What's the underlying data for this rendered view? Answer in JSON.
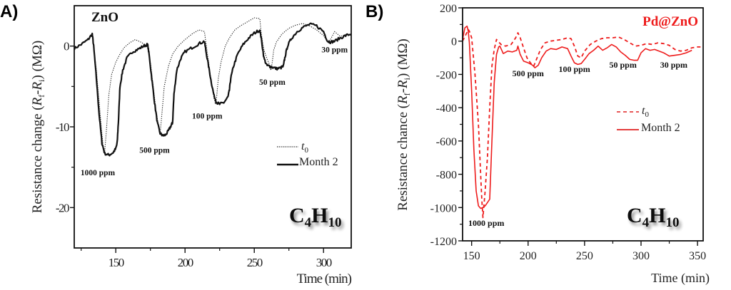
{
  "chart_data": [
    {
      "panel_label": "A)",
      "type": "line",
      "material_label": "ZnO",
      "gas_label": {
        "base": "C",
        "sub1": "4",
        "mid": "H",
        "sub2": "10"
      },
      "xlabel": "Time (min)",
      "ylabel": "Resistance change (R_f-R_i) (MΩ)",
      "ylabel_parts": {
        "pre": "Resistance change (",
        "r1": "R",
        "s1": "f",
        "dash": "-",
        "r2": "R",
        "s2": "i",
        "post": ") (MΩ)"
      },
      "xlim": [
        120,
        320
      ],
      "ylim": [
        -25,
        5
      ],
      "xticks": [
        150,
        200,
        250,
        300
      ],
      "xtick_labels": [
        "150",
        "200",
        "250",
        "300"
      ],
      "xminor": [
        125,
        175,
        225,
        275
      ],
      "yticks": [
        0,
        -10,
        -20
      ],
      "ytick_labels": [
        "0",
        "-10",
        "-20"
      ],
      "yminor": [
        -5,
        -15
      ],
      "color": "#111111",
      "legend": {
        "position": "center-right",
        "entries": [
          {
            "label": "t",
            "sub": "0",
            "style": "dotted"
          },
          {
            "label": "Month 2",
            "style": "solid"
          }
        ]
      },
      "annotations": [
        {
          "text": "1000 ppm",
          "x": 137,
          "y": -16
        },
        {
          "text": "500 ppm",
          "x": 178,
          "y": -13.2
        },
        {
          "text": "100 ppm",
          "x": 216,
          "y": -9
        },
        {
          "text": "50 ppm",
          "x": 263,
          "y": -4.8
        },
        {
          "text": "30 ppm",
          "x": 308,
          "y": -0.8
        }
      ],
      "series": [
        {
          "name": "t0",
          "style": "dotted",
          "x": [
            120,
            125,
            130,
            133,
            134,
            136,
            138,
            140,
            141,
            142,
            143,
            145,
            147,
            150,
            153,
            156,
            160,
            164,
            168,
            172,
            173,
            175,
            177,
            179,
            181,
            182,
            183,
            185,
            188,
            191,
            195,
            200,
            205,
            210,
            214,
            215,
            217,
            219,
            221,
            222,
            223,
            224,
            226,
            229,
            232,
            236,
            240,
            245,
            250,
            254,
            255,
            257,
            259,
            261,
            262,
            263,
            264,
            266,
            270,
            275,
            280,
            285,
            290,
            295,
            300,
            303,
            305,
            308,
            312,
            316,
            320
          ],
          "y": [
            -0.3,
            0.2,
            0.8,
            1.5,
            0,
            -3,
            -7,
            -11,
            -12.5,
            -13,
            -11,
            -6,
            -3.5,
            -2,
            -1,
            -0.2,
            0.4,
            0.8,
            0.5,
            0.1,
            0,
            -2,
            -5,
            -8,
            -10,
            -10.8,
            -9,
            -5,
            -2.5,
            -1,
            0,
            0.8,
            1.5,
            2,
            1.8,
            0.5,
            -2,
            -4.5,
            -6.5,
            -7.2,
            -6,
            -4,
            -2,
            0,
            1,
            2,
            2.5,
            3,
            3.5,
            3.4,
            1.5,
            -0.5,
            -1.5,
            -2.3,
            -3,
            -2,
            -0.5,
            0.5,
            1.5,
            2.2,
            2.6,
            2.8,
            2.5,
            2,
            1.3,
            0.6,
            0.8,
            1.8,
            1.2,
            1.4,
            1.5
          ]
        },
        {
          "name": "Month 2",
          "style": "solid",
          "x": [
            120,
            125,
            130,
            133,
            134,
            136,
            138,
            140,
            142,
            145,
            148,
            150,
            151,
            152,
            153,
            155,
            158,
            162,
            166,
            170,
            173,
            174,
            176,
            178,
            180,
            182,
            184,
            186,
            188,
            190,
            191,
            192,
            194,
            197,
            200,
            205,
            210,
            214,
            215,
            217,
            219,
            221,
            223,
            225,
            228,
            231,
            232,
            233,
            235,
            238,
            242,
            246,
            250,
            254,
            255,
            257,
            259,
            261,
            263,
            266,
            269,
            271,
            272,
            274,
            277,
            281,
            285,
            290,
            295,
            300,
            303,
            305,
            308,
            312,
            316,
            320
          ],
          "y": [
            -0.3,
            0.2,
            0.8,
            1.5,
            0,
            -4,
            -8.5,
            -12,
            -13.3,
            -13.5,
            -13.2,
            -12.7,
            -12,
            -9,
            -5,
            -3,
            -1.5,
            -0.7,
            -0.4,
            0,
            0.2,
            -1,
            -4,
            -7,
            -9.5,
            -10.8,
            -11.1,
            -11,
            -10.5,
            -9.8,
            -9.5,
            -6,
            -3,
            -1.5,
            -0.7,
            -0.2,
            0.3,
            0.6,
            -0.5,
            -2.5,
            -4.5,
            -6.2,
            -7,
            -7.2,
            -7,
            -6.3,
            -5.5,
            -4,
            -2.5,
            -1,
            0.2,
            1,
            1.6,
            2,
            1,
            -1.5,
            -2.4,
            -2.5,
            -2.6,
            -2.8,
            -2.7,
            -2.5,
            -1.5,
            0,
            1,
            1.8,
            2.3,
            2.7,
            2.5,
            1.8,
            0.6,
            0.5,
            0.6,
            1,
            1.3,
            1.5
          ]
        }
      ]
    },
    {
      "panel_label": "B)",
      "type": "line",
      "material_label": "Pd@ZnO",
      "gas_label": {
        "base": "C",
        "sub1": "4",
        "mid": "H",
        "sub2": "10"
      },
      "xlabel": "Time (min)",
      "ylabel": "Resistance chance (R_f-R_i) (MΩ)",
      "ylabel_parts": {
        "pre": "Resistance chance (",
        "r1": "R",
        "s1": "f",
        "dash": "-",
        "r2": "R",
        "s2": "i",
        "post": ") (MΩ)"
      },
      "xlim": [
        142,
        355
      ],
      "ylim": [
        -1200,
        200
      ],
      "xticks": [
        150,
        200,
        250,
        300,
        350
      ],
      "xtick_labels": [
        "150",
        "200",
        "250",
        "300",
        "350"
      ],
      "xminor": [
        175,
        225,
        275,
        325
      ],
      "yticks": [
        200,
        0,
        -200,
        -400,
        -600,
        -800,
        -1000,
        -1200
      ],
      "ytick_labels": [
        "200",
        "0",
        "-200",
        "-400",
        "-600",
        "-800",
        "-1000",
        "-1200"
      ],
      "yminor": [
        100,
        -100,
        -300,
        -500,
        -700,
        -900,
        -1100
      ],
      "color": "#ee1c1c",
      "legend": {
        "position": "center-right",
        "entries": [
          {
            "label": "t",
            "sub": "0",
            "style": "dashed"
          },
          {
            "label": "Month 2",
            "style": "solid"
          }
        ]
      },
      "annotations": [
        {
          "text": "1000 ppm",
          "x": 163,
          "y": -1110
        },
        {
          "text": "500 ppm",
          "x": 200,
          "y": -210
        },
        {
          "text": "100 ppm",
          "x": 241,
          "y": -185
        },
        {
          "text": "50 ppm",
          "x": 284,
          "y": -160
        },
        {
          "text": "30 ppm",
          "x": 329,
          "y": -160
        }
      ],
      "series": [
        {
          "name": "t0",
          "style": "dashed",
          "x": [
            142,
            145,
            147,
            148,
            150,
            153,
            156,
            158,
            159,
            160,
            162,
            164,
            166,
            168,
            170,
            172,
            176,
            180,
            185,
            189,
            191,
            193,
            196,
            199,
            202,
            205,
            208,
            211,
            215,
            220,
            225,
            230,
            235,
            238,
            241,
            244,
            247,
            250,
            255,
            260,
            265,
            270,
            275,
            280,
            285,
            290,
            295,
            300,
            305,
            310,
            315,
            320,
            325,
            330,
            335,
            340,
            345,
            350,
            355
          ],
          "y": [
            0,
            40,
            70,
            60,
            20,
            -200,
            -500,
            -800,
            -950,
            -1060,
            -900,
            -700,
            -400,
            -150,
            -50,
            10,
            -20,
            -30,
            -20,
            20,
            50,
            20,
            -40,
            -100,
            -130,
            -150,
            -100,
            -50,
            -10,
            0,
            5,
            10,
            20,
            15,
            -30,
            -90,
            -100,
            -60,
            -20,
            0,
            15,
            20,
            20,
            25,
            10,
            -10,
            -30,
            -25,
            -15,
            -20,
            -10,
            -15,
            -25,
            -50,
            -60,
            -55,
            -40,
            -35,
            -35
          ]
        },
        {
          "name": "Month 2",
          "style": "solid",
          "x": [
            142,
            144,
            146,
            147,
            148,
            150,
            152,
            154,
            156,
            158,
            160,
            162,
            164,
            166,
            168,
            170,
            172,
            174,
            175,
            178,
            182,
            186,
            190,
            191,
            193,
            196,
            200,
            204,
            206,
            209,
            212,
            216,
            220,
            225,
            230,
            235,
            238,
            241,
            244,
            247,
            250,
            254,
            258,
            262,
            266,
            270,
            274,
            278,
            282,
            286,
            290,
            294,
            297,
            300,
            304,
            308,
            312,
            316,
            320,
            325,
            330,
            335,
            340,
            345
          ],
          "y": [
            10,
            80,
            90,
            60,
            -10,
            -300,
            -650,
            -900,
            -990,
            -1005,
            -1000,
            -990,
            -970,
            -950,
            -600,
            -250,
            -80,
            -35,
            -30,
            -75,
            -60,
            -65,
            -55,
            -30,
            -80,
            -120,
            -130,
            -145,
            -160,
            -145,
            -100,
            -60,
            -45,
            -50,
            -35,
            -45,
            -90,
            -130,
            -140,
            -135,
            -110,
            -75,
            -55,
            -30,
            -55,
            -40,
            -20,
            -35,
            -65,
            -85,
            -110,
            -115,
            -115,
            -70,
            -45,
            -55,
            -50,
            -60,
            -70,
            -90,
            -85,
            -80,
            -70,
            -55
          ]
        }
      ]
    }
  ]
}
